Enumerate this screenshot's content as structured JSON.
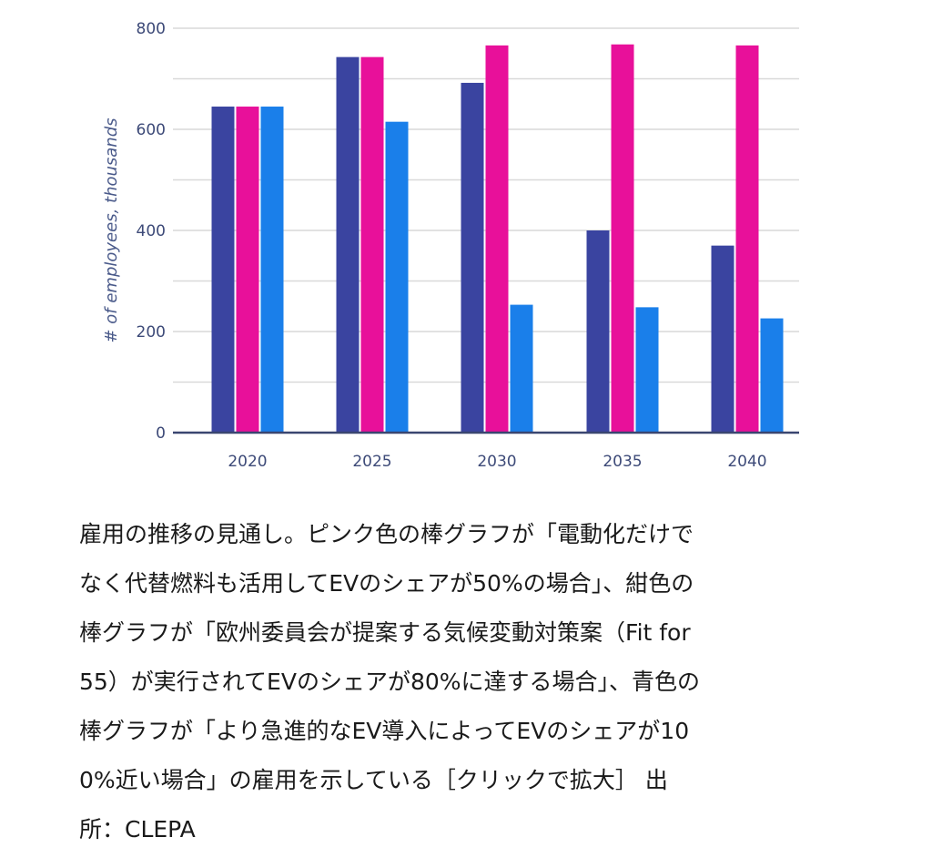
{
  "chart_data": {
    "type": "bar",
    "title": "",
    "xlabel": "",
    "ylabel": "# of employees, thousands",
    "ylim": [
      0,
      800
    ],
    "yticks": [
      0,
      200,
      400,
      600,
      800
    ],
    "grid": true,
    "categories": [
      "2020",
      "2025",
      "2030",
      "2035",
      "2040"
    ],
    "series": [
      {
        "name": "navy",
        "color": "#3a44a0",
        "values": [
          645,
          743,
          692,
          400,
          370
        ]
      },
      {
        "name": "pink",
        "color": "#e8109a",
        "values": [
          645,
          743,
          766,
          768,
          766
        ]
      },
      {
        "name": "blue",
        "color": "#1a7fea",
        "values": [
          645,
          615,
          253,
          248,
          226
        ]
      }
    ]
  },
  "caption": {
    "lines": [
      "雇用の推移の見通し。ピンク色の棒グラフが「電動化だけで",
      "なく代替燃料も活用してEVのシェアが50%の場合」、紺色の",
      "棒グラフが「欧州委員会が提案する気候変動対策案（Fit for",
      "55）が実行されてEVのシェアが80%に達する場合」、青色の",
      "棒グラフが「より急進的なEV導入によってEVのシェアが10",
      "0%近い場合」の雇用を示している［クリックで拡大］ 出",
      "所：CLEPA"
    ]
  },
  "colors": {
    "grid": "#d9d9d9",
    "axis": "#3a4670",
    "tick_text": "#3d4a78"
  }
}
